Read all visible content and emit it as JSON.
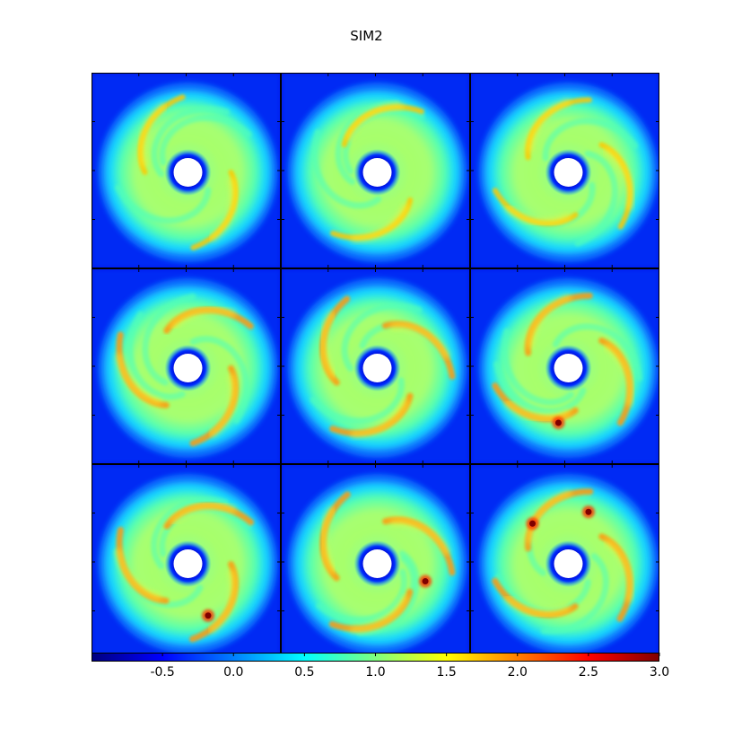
{
  "chart_data": {
    "type": "heatmap",
    "title": "SIM2",
    "layout": "3x3 grid of face-on density snapshots",
    "colormap": "jet",
    "colorbar": {
      "orientation": "horizontal",
      "placement": "bottom",
      "range": [
        -1.0,
        3.0
      ],
      "ticks": [
        -0.5,
        0.0,
        0.5,
        1.0,
        1.5,
        2.0,
        2.5,
        3.0
      ],
      "tick_labels": [
        "-0.5",
        "0.0",
        "0.5",
        "1.0",
        "1.5",
        "2.0",
        "2.5",
        "3.0"
      ],
      "colors": [
        "#00007f",
        "#0000ff",
        "#007fff",
        "#00ffff",
        "#7fff7f",
        "#ffff00",
        "#ff7f00",
        "#ff0000",
        "#7f0000"
      ]
    },
    "panels": [
      {
        "index": 1,
        "row": 1,
        "col": 1,
        "clumps": 0,
        "spiral_arms": 2
      },
      {
        "index": 2,
        "row": 1,
        "col": 2,
        "clumps": 0,
        "spiral_arms": 2
      },
      {
        "index": 3,
        "row": 1,
        "col": 3,
        "clumps": 0,
        "spiral_arms": 3
      },
      {
        "index": 4,
        "row": 2,
        "col": 1,
        "clumps": 0,
        "spiral_arms": 3
      },
      {
        "index": 5,
        "row": 2,
        "col": 2,
        "clumps": 0,
        "spiral_arms": 3
      },
      {
        "index": 6,
        "row": 2,
        "col": 3,
        "clumps": 1,
        "spiral_arms": 3
      },
      {
        "index": 7,
        "row": 3,
        "col": 1,
        "clumps": 1,
        "spiral_arms": 3
      },
      {
        "index": 8,
        "row": 3,
        "col": 2,
        "clumps": 1,
        "spiral_arms": 3
      },
      {
        "index": 9,
        "row": 3,
        "col": 3,
        "clumps": 2,
        "spiral_arms": 3
      }
    ]
  }
}
